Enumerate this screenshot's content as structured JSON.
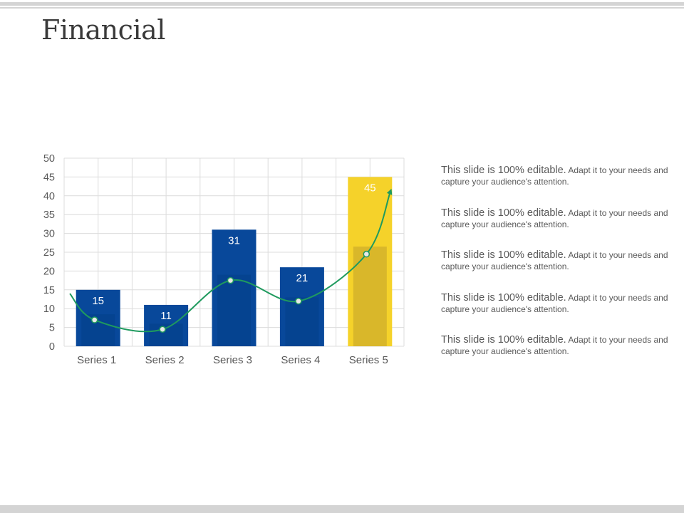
{
  "slide": {
    "title": "Financial"
  },
  "chart_data": {
    "type": "bar",
    "categories": [
      "Series 1",
      "Series 2",
      "Series 3",
      "Series 4",
      "Series 5"
    ],
    "series": [
      {
        "values": [
          15,
          11,
          31,
          21,
          45
        ]
      },
      {
        "values": [
          8.5,
          6,
          19,
          13,
          26.5
        ]
      },
      {
        "type": "line",
        "values": [
          7,
          4.5,
          17.5,
          12,
          24.5
        ]
      }
    ],
    "ylim": [
      0,
      50
    ],
    "yticks": [
      0,
      5,
      10,
      15,
      20,
      25,
      30,
      35,
      40,
      45,
      50
    ],
    "data_labels": [
      "15",
      "11",
      "31",
      "21",
      "45"
    ],
    "grid": true,
    "colors": {
      "bar": "#08489a",
      "bar_inner": "#054390",
      "highlight": "#f5d22a",
      "highlight_inner": "#d9b72a",
      "line": "#1f9a5e",
      "grid": "#dcdcdc",
      "axis_text": "#595959"
    }
  },
  "notes": [
    {
      "lead": "This slide is 100% editable.",
      "body": " Adapt it to your needs and capture your audience's attention."
    },
    {
      "lead": "This slide is 100% editable.",
      "body": " Adapt it to your needs and capture your audience's attention."
    },
    {
      "lead": "This slide is 100% editable.",
      "body": " Adapt it to your needs and capture your audience's attention."
    },
    {
      "lead": "This slide is 100% editable.",
      "body": " Adapt it to your needs and capture your audience's attention."
    },
    {
      "lead": "This slide is 100% editable.",
      "body": " Adapt it to your needs and capture your audience's attention."
    }
  ]
}
